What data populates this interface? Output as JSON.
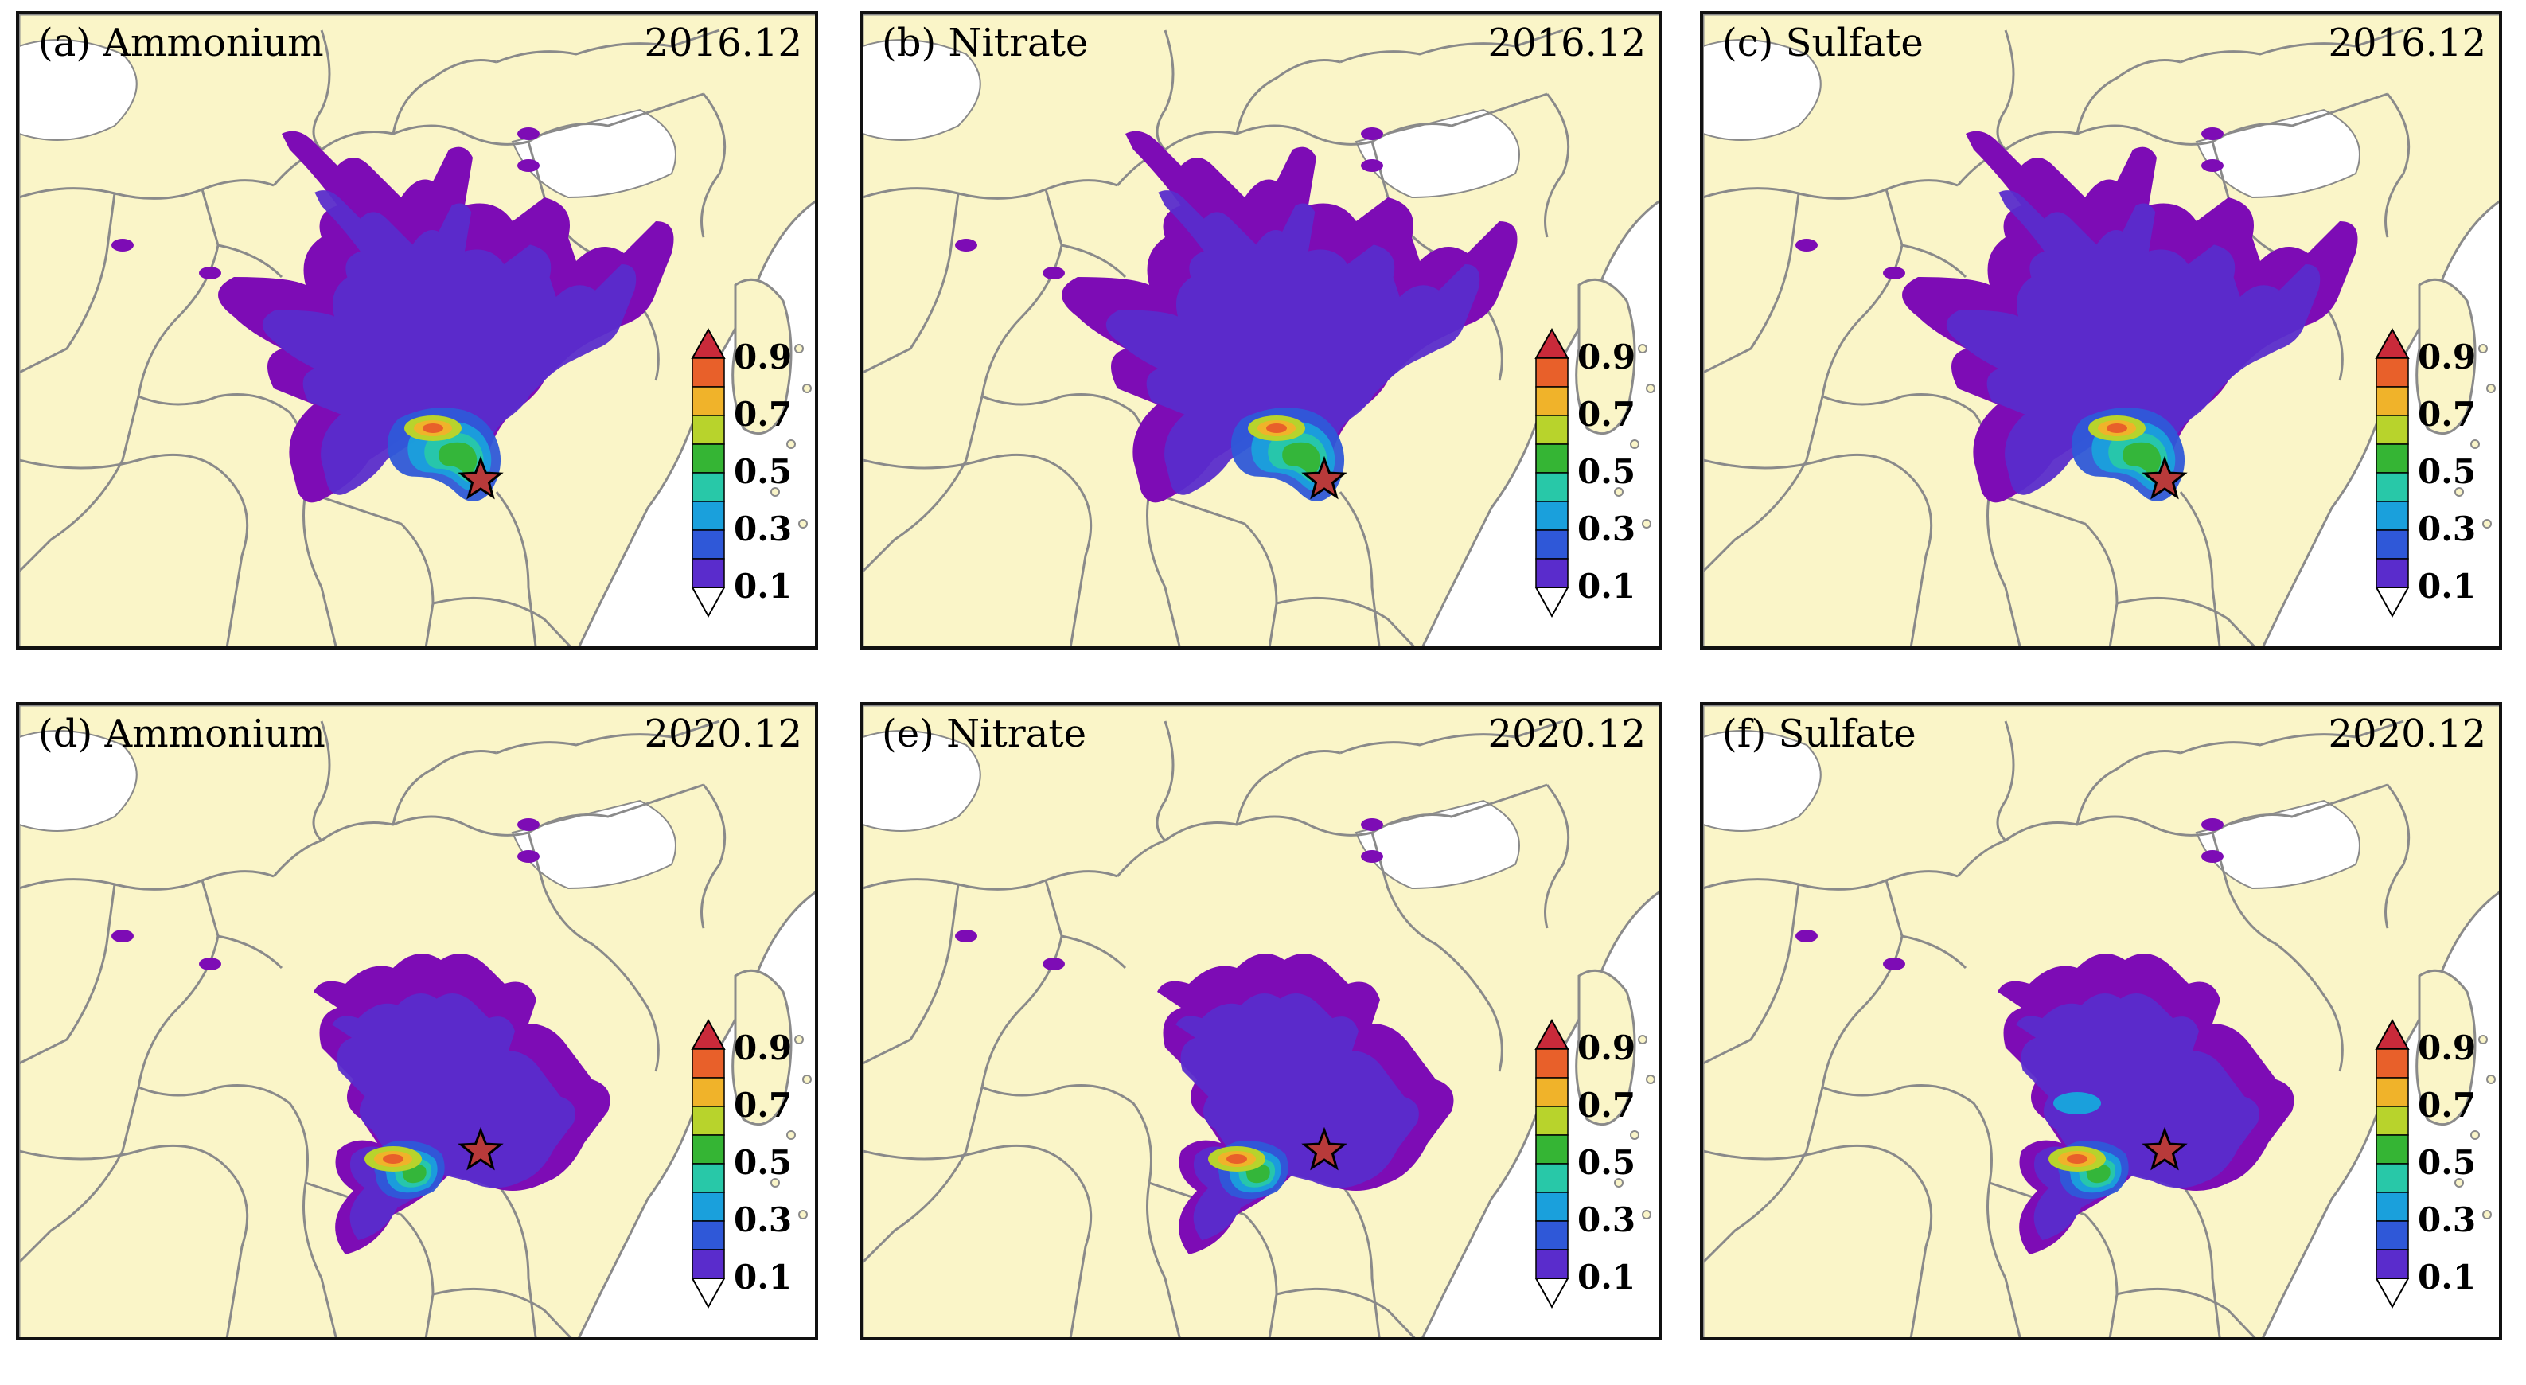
{
  "panels": [
    {
      "label": "(a) Ammonium",
      "date": "2016.12",
      "period": "2016",
      "species": "ammonium"
    },
    {
      "label": "(b) Nitrate",
      "date": "2016.12",
      "period": "2016",
      "species": "nitrate"
    },
    {
      "label": "(c) Sulfate",
      "date": "2016.12",
      "period": "2016",
      "species": "sulfate"
    },
    {
      "label": "(d) Ammonium",
      "date": "2020.12",
      "period": "2020",
      "species": "ammonium"
    },
    {
      "label": "(e) Nitrate",
      "date": "2020.12",
      "period": "2020",
      "species": "nitrate"
    },
    {
      "label": "(f) Sulfate",
      "date": "2020.12",
      "period": "2020",
      "species": "sulfate"
    }
  ],
  "colorbar": {
    "ticks": [
      "0.9",
      "0.7",
      "0.5",
      "0.3",
      "0.1"
    ],
    "colors": [
      "#7d0cb5",
      "#5a2ccc",
      "#2f58d8",
      "#1aa0dc",
      "#28c8a8",
      "#35b534",
      "#b8d32c",
      "#f0b32a",
      "#e8602a",
      "#c92a3a"
    ],
    "extend": "both"
  },
  "map_colors": {
    "land": "#faf5c8",
    "ocean": "#ffffff",
    "border": "#8a8a8a",
    "marker": "#b83a3a"
  },
  "marker_icon": "star-icon"
}
